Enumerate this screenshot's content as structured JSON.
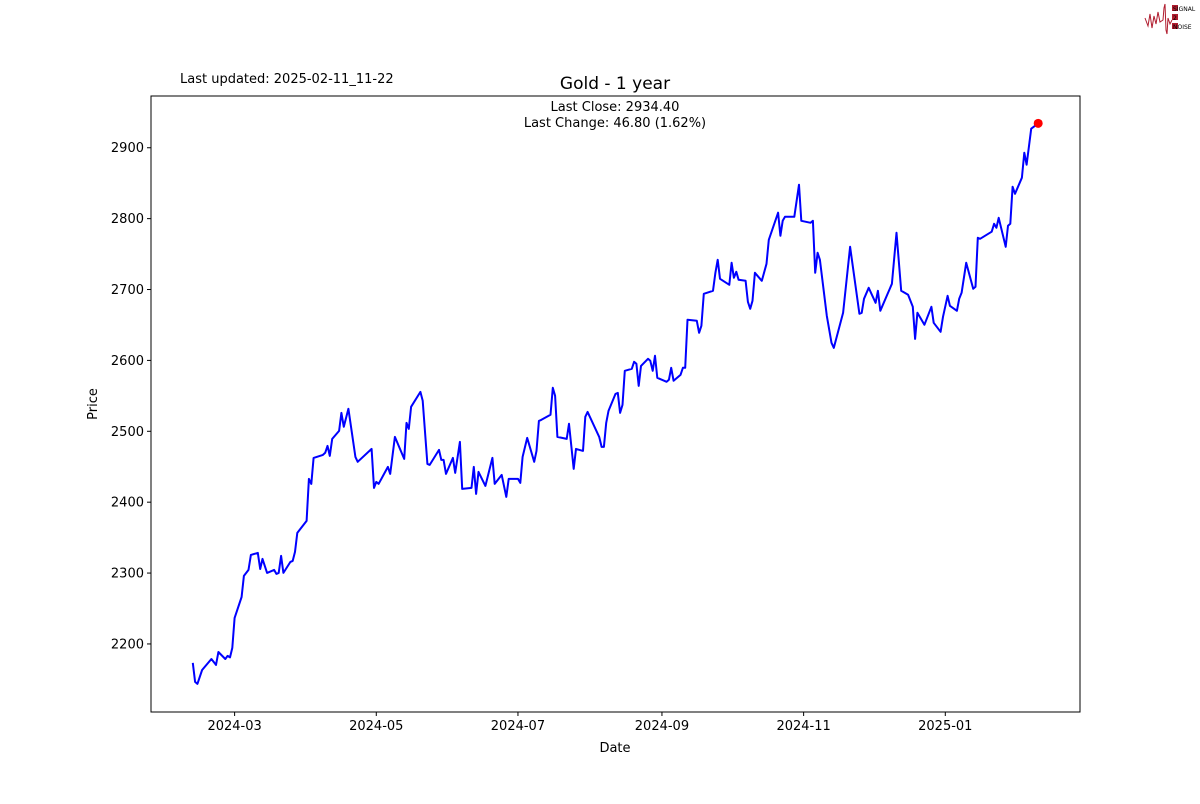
{
  "header": {
    "last_updated": "Last updated: 2025-02-11_11-22",
    "logo_text": [
      "SIGNAL",
      "2",
      "NOISE"
    ]
  },
  "chart_data": {
    "type": "line",
    "title": "Gold - 1 year",
    "annotations": [
      "Last Close: 2934.40",
      "Last Change: 46.80 (1.62%)"
    ],
    "xlabel": "Date",
    "ylabel": "Price",
    "xlim": [
      "2024-01-25",
      "2025-02-28"
    ],
    "ylim": [
      2104,
      2973
    ],
    "x_ticks": [
      "2024-03",
      "2024-05",
      "2024-07",
      "2024-09",
      "2024-11",
      "2025-01"
    ],
    "y_ticks": [
      2200,
      2300,
      2400,
      2500,
      2600,
      2700,
      2800,
      2900
    ],
    "grid": false,
    "line_color": "#0000ff",
    "last_point_color": "#ff0000",
    "last_point": {
      "x": "2025-02-10",
      "y": 2934.4
    },
    "series": [
      {
        "x": [
          "2024-02-12",
          "2024-02-13",
          "2024-02-14",
          "2024-02-16",
          "2024-02-20",
          "2024-02-22",
          "2024-02-23",
          "2024-02-26",
          "2024-02-27",
          "2024-02-28",
          "2024-02-29",
          "2024-03-01",
          "2024-03-04",
          "2024-03-05",
          "2024-03-07",
          "2024-03-08",
          "2024-03-11",
          "2024-03-12",
          "2024-03-13",
          "2024-03-15",
          "2024-03-18",
          "2024-03-19",
          "2024-03-20",
          "2024-03-21",
          "2024-03-22",
          "2024-03-25",
          "2024-03-26",
          "2024-03-27",
          "2024-03-28",
          "2024-04-01",
          "2024-04-02",
          "2024-04-03",
          "2024-04-04",
          "2024-04-08",
          "2024-04-09",
          "2024-04-10",
          "2024-04-11",
          "2024-04-12",
          "2024-04-15",
          "2024-04-16",
          "2024-04-17",
          "2024-04-19",
          "2024-04-22",
          "2024-04-23",
          "2024-04-29",
          "2024-04-30",
          "2024-05-01",
          "2024-05-02",
          "2024-05-06",
          "2024-05-07",
          "2024-05-09",
          "2024-05-13",
          "2024-05-14",
          "2024-05-15",
          "2024-05-16",
          "2024-05-20",
          "2024-05-21",
          "2024-05-23",
          "2024-05-24",
          "2024-05-28",
          "2024-05-29",
          "2024-05-30",
          "2024-05-31",
          "2024-06-03",
          "2024-06-04",
          "2024-06-06",
          "2024-06-07",
          "2024-06-11",
          "2024-06-12",
          "2024-06-13",
          "2024-06-14",
          "2024-06-17",
          "2024-06-20",
          "2024-06-21",
          "2024-06-24",
          "2024-06-26",
          "2024-06-27",
          "2024-07-01",
          "2024-07-02",
          "2024-07-03",
          "2024-07-05",
          "2024-07-08",
          "2024-07-09",
          "2024-07-10",
          "2024-07-11",
          "2024-07-15",
          "2024-07-16",
          "2024-07-17",
          "2024-07-18",
          "2024-07-22",
          "2024-07-23",
          "2024-07-25",
          "2024-07-26",
          "2024-07-29",
          "2024-07-30",
          "2024-07-31",
          "2024-08-05",
          "2024-08-06",
          "2024-08-07",
          "2024-08-08",
          "2024-08-09",
          "2024-08-12",
          "2024-08-13",
          "2024-08-14",
          "2024-08-15",
          "2024-08-16",
          "2024-08-19",
          "2024-08-20",
          "2024-08-21",
          "2024-08-22",
          "2024-08-23",
          "2024-08-26",
          "2024-08-27",
          "2024-08-28",
          "2024-08-29",
          "2024-08-30",
          "2024-09-03",
          "2024-09-04",
          "2024-09-05",
          "2024-09-06",
          "2024-09-09",
          "2024-09-10",
          "2024-09-11",
          "2024-09-12",
          "2024-09-16",
          "2024-09-17",
          "2024-09-18",
          "2024-09-19",
          "2024-09-23",
          "2024-09-24",
          "2024-09-25",
          "2024-09-26",
          "2024-09-30",
          "2024-10-01",
          "2024-10-02",
          "2024-10-03",
          "2024-10-04",
          "2024-10-07",
          "2024-10-08",
          "2024-10-09",
          "2024-10-10",
          "2024-10-11",
          "2024-10-14",
          "2024-10-16",
          "2024-10-17",
          "2024-10-21",
          "2024-10-22",
          "2024-10-23",
          "2024-10-24",
          "2024-10-28",
          "2024-10-30",
          "2024-10-31",
          "2024-11-04",
          "2024-11-05",
          "2024-11-06",
          "2024-11-07",
          "2024-11-08",
          "2024-11-11",
          "2024-11-13",
          "2024-11-14",
          "2024-11-18",
          "2024-11-21",
          "2024-11-25",
          "2024-11-26",
          "2024-11-27",
          "2024-11-29",
          "2024-12-02",
          "2024-12-03",
          "2024-12-04",
          "2024-12-09",
          "2024-12-11",
          "2024-12-13",
          "2024-12-16",
          "2024-12-18",
          "2024-12-19",
          "2024-12-20",
          "2024-12-23",
          "2024-12-26",
          "2024-12-27",
          "2024-12-30",
          "2024-12-31",
          "2025-01-02",
          "2025-01-03",
          "2025-01-06",
          "2025-01-07",
          "2025-01-08",
          "2025-01-10",
          "2025-01-13",
          "2025-01-14",
          "2025-01-15",
          "2025-01-16",
          "2025-01-21",
          "2025-01-22",
          "2025-01-23",
          "2025-01-24",
          "2025-01-27",
          "2025-01-28",
          "2025-01-29",
          "2025-01-30",
          "2025-01-31",
          "2025-02-03",
          "2025-02-04",
          "2025-02-05",
          "2025-02-07",
          "2025-02-10"
        ],
        "y": [
          2173.2,
          2146.4,
          2143.6,
          2163.3,
          2178.8,
          2170.4,
          2188.7,
          2178.8,
          2183.1,
          2181.0,
          2194.4,
          2236.7,
          2266.3,
          2296.0,
          2304.4,
          2325.6,
          2328.4,
          2305.8,
          2320.0,
          2300.2,
          2304.4,
          2298.8,
          2300.2,
          2324.2,
          2300.2,
          2315.7,
          2317.1,
          2329.8,
          2356.7,
          2373.6,
          2432.9,
          2425.8,
          2462.5,
          2466.7,
          2469.6,
          2479.4,
          2465.3,
          2489.3,
          2500.6,
          2526.0,
          2506.3,
          2531.7,
          2463.9,
          2456.9,
          2475.2,
          2420.2,
          2428.6,
          2425.8,
          2449.8,
          2439.9,
          2492.1,
          2461.1,
          2511.9,
          2503.4,
          2534.5,
          2555.6,
          2543.0,
          2454.0,
          2452.6,
          2473.8,
          2459.7,
          2459.7,
          2439.9,
          2462.5,
          2441.3,
          2485.1,
          2418.7,
          2420.2,
          2449.8,
          2411.7,
          2442.7,
          2423.0,
          2462.5,
          2425.8,
          2438.5,
          2407.5,
          2432.9,
          2432.9,
          2427.2,
          2463.9,
          2490.7,
          2456.9,
          2472.4,
          2514.7,
          2516.1,
          2523.2,
          2561.3,
          2550.0,
          2492.1,
          2489.3,
          2510.5,
          2447.0,
          2475.2,
          2472.4,
          2520.4,
          2527.4,
          2492.1,
          2478.0,
          2478.0,
          2511.9,
          2528.8,
          2552.8,
          2554.2,
          2526.0,
          2537.3,
          2585.3,
          2588.1,
          2598.0,
          2595.2,
          2564.1,
          2592.3,
          2602.2,
          2599.4,
          2585.3,
          2606.5,
          2575.4,
          2569.8,
          2572.6,
          2589.5,
          2571.2,
          2579.6,
          2589.5,
          2589.5,
          2657.3,
          2655.9,
          2638.9,
          2648.8,
          2694.0,
          2698.2,
          2723.6,
          2741.9,
          2715.1,
          2706.6,
          2737.7,
          2716.5,
          2725.0,
          2713.7,
          2712.3,
          2682.7,
          2672.8,
          2684.1,
          2723.6,
          2712.3,
          2736.3,
          2770.2,
          2808.3,
          2775.8,
          2797.0,
          2802.6,
          2802.6,
          2847.8,
          2797.0,
          2794.1,
          2797.0,
          2723.6,
          2751.8,
          2741.9,
          2662.9,
          2624.8,
          2617.7,
          2667.1,
          2760.3,
          2665.7,
          2667.1,
          2686.9,
          2702.4,
          2681.3,
          2698.2,
          2670.0,
          2708.1,
          2780.0,
          2698.2,
          2692.5,
          2675.6,
          2630.4,
          2667.1,
          2650.2,
          2675.6,
          2653.0,
          2640.3,
          2661.5,
          2691.1,
          2677.0,
          2670.0,
          2686.9,
          2695.4,
          2737.7,
          2701.0,
          2703.8,
          2773.0,
          2771.6,
          2781.5,
          2792.7,
          2787.1,
          2801.2,
          2760.3,
          2789.9,
          2792.7,
          2845.0,
          2835.1,
          2857.7,
          2893.0,
          2876.1,
          2926.8,
          2934.4
        ]
      }
    ]
  }
}
